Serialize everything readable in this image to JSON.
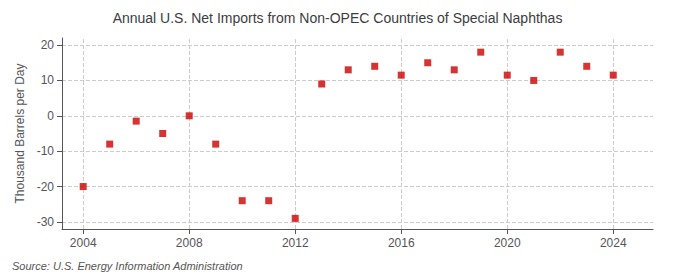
{
  "chart_data": {
    "type": "scatter",
    "title": "Annual U.S. Net Imports from Non-OPEC Countries of Special Naphthas",
    "ylabel": "Thousand Barrels per Day",
    "source": "Source: U.S. Energy Information Administration",
    "x": [
      2004,
      2005,
      2006,
      2007,
      2008,
      2009,
      2010,
      2011,
      2012,
      2013,
      2014,
      2015,
      2016,
      2017,
      2018,
      2019,
      2020,
      2021,
      2022,
      2023,
      2024
    ],
    "values": [
      -20,
      -8,
      -1.5,
      -5,
      0,
      -8,
      -24,
      -24,
      -29,
      9,
      13,
      14,
      11.5,
      15,
      13,
      18,
      11.5,
      10,
      18,
      14,
      11.5
    ],
    "color": "#cc0000",
    "marker": "square",
    "xlim": [
      2003.2,
      2025.5
    ],
    "xticks": [
      2004,
      2008,
      2012,
      2016,
      2020,
      2024
    ],
    "ylim": [
      -32,
      22
    ],
    "yticks": [
      -30,
      -20,
      -10,
      0,
      10,
      20
    ],
    "grid": true
  }
}
